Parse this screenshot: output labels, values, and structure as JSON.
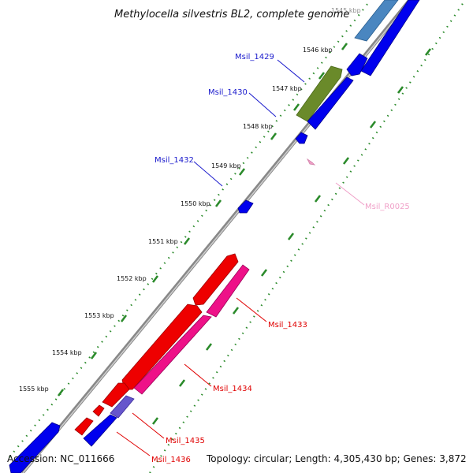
{
  "title": "Methylocella silvestris BL2, complete genome",
  "footer": {
    "accession": "Accession: NC_011666",
    "topology": "Topology: circular; Length: 4,305,430 bp; Genes: 3,872"
  },
  "ticks": [
    {
      "label": "1545 kbp",
      "faded": true
    },
    {
      "label": "1546 kbp"
    },
    {
      "label": "1547 kbp"
    },
    {
      "label": "1548 kbp"
    },
    {
      "label": "1549 kbp"
    },
    {
      "label": "1550 kbp"
    },
    {
      "label": "1551 kbp"
    },
    {
      "label": "1552 kbp"
    },
    {
      "label": "1553 kbp"
    },
    {
      "label": "1554 kbp"
    },
    {
      "label": "1555 kbp"
    }
  ],
  "gene_labels": [
    {
      "name": "Msil_1429",
      "color": "#1a1acc"
    },
    {
      "name": "Msil_1430",
      "color": "#1a1acc"
    },
    {
      "name": "Msil_1432",
      "color": "#1a1acc"
    },
    {
      "name": "Msil_R0025",
      "color": "#f0a0c8"
    },
    {
      "name": "Msil_1433",
      "color": "#e00000"
    },
    {
      "name": "Msil_1434",
      "color": "#e00000"
    },
    {
      "name": "Msil_1435",
      "color": "#e00000"
    },
    {
      "name": "Msil_1436",
      "color": "#e00000"
    }
  ],
  "colors": {
    "backbone": "#8a8a8a",
    "gc_dots": "#2a8a2a",
    "cds_blue": "#0000ee",
    "cds_red": "#ee0000",
    "cds_pink": "#ee1188",
    "cds_green": "#6a8a2a",
    "cds_steel": "#4a86c0",
    "cds_violet": "#6655cc",
    "rrna": "#f0a0c8"
  }
}
